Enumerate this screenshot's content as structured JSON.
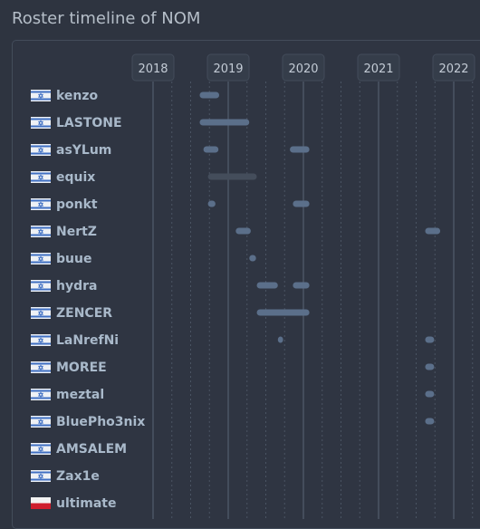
{
  "header": {
    "title": "Roster timeline of NOM"
  },
  "years": [
    "2018",
    "2019",
    "2020",
    "2021",
    "2022"
  ],
  "colors": {
    "background": "#2e3440",
    "panel_border": "#434c5a",
    "year_line": "#5a6575",
    "dotted_line": "#4a5463",
    "bar_active": "#5b6f8a",
    "bar_inactive": "#444d5b",
    "name": "#a9b9ca"
  },
  "players": [
    {
      "name": "kenzo",
      "flag": "israel-flag-icon",
      "stints": [
        {
          "start": 2018.62,
          "end": 2018.88,
          "status": "active"
        }
      ]
    },
    {
      "name": "LASTONE",
      "flag": "israel-flag-icon",
      "stints": [
        {
          "start": 2018.62,
          "end": 2019.28,
          "status": "active"
        }
      ]
    },
    {
      "name": "asYLum",
      "flag": "israel-flag-icon",
      "stints": [
        {
          "start": 2018.67,
          "end": 2018.87,
          "status": "active"
        },
        {
          "start": 2019.82,
          "end": 2020.08,
          "status": "active"
        }
      ]
    },
    {
      "name": "equix",
      "flag": "israel-flag-icon",
      "stints": [
        {
          "start": 2018.73,
          "end": 2019.38,
          "status": "inactive"
        }
      ]
    },
    {
      "name": "ponkt",
      "flag": "israel-flag-icon",
      "stints": [
        {
          "start": 2018.73,
          "end": 2018.83,
          "status": "active"
        },
        {
          "start": 2019.86,
          "end": 2020.08,
          "status": "active"
        }
      ]
    },
    {
      "name": "NertZ",
      "flag": "israel-flag-icon",
      "stints": [
        {
          "start": 2019.1,
          "end": 2019.3,
          "status": "active"
        },
        {
          "start": 2021.62,
          "end": 2021.82,
          "status": "active"
        }
      ]
    },
    {
      "name": "buue",
      "flag": "israel-flag-icon",
      "stints": [
        {
          "start": 2019.28,
          "end": 2019.37,
          "status": "active"
        }
      ]
    },
    {
      "name": "hydra",
      "flag": "israel-flag-icon",
      "stints": [
        {
          "start": 2019.38,
          "end": 2019.66,
          "status": "active"
        },
        {
          "start": 2019.86,
          "end": 2020.08,
          "status": "active"
        }
      ]
    },
    {
      "name": "ZENCER",
      "flag": "israel-flag-icon",
      "stints": [
        {
          "start": 2019.38,
          "end": 2020.08,
          "status": "active"
        }
      ]
    },
    {
      "name": "LaNrefNi",
      "flag": "israel-flag-icon",
      "stints": [
        {
          "start": 2019.66,
          "end": 2019.73,
          "status": "active"
        },
        {
          "start": 2021.62,
          "end": 2021.74,
          "status": "active"
        }
      ]
    },
    {
      "name": "MOREE",
      "flag": "israel-flag-icon",
      "stints": [
        {
          "start": 2021.62,
          "end": 2021.74,
          "status": "active"
        }
      ]
    },
    {
      "name": "meztal",
      "flag": "israel-flag-icon",
      "stints": [
        {
          "start": 2021.62,
          "end": 2021.74,
          "status": "active"
        }
      ]
    },
    {
      "name": "BluePho3nix",
      "flag": "israel-flag-icon",
      "stints": [
        {
          "start": 2021.62,
          "end": 2021.74,
          "status": "active"
        }
      ]
    },
    {
      "name": "AMSALEM",
      "flag": "israel-flag-icon",
      "stints": []
    },
    {
      "name": "Zax1e",
      "flag": "israel-flag-icon",
      "stints": []
    },
    {
      "name": "ultimate",
      "flag": "poland-flag-icon",
      "stints": []
    }
  ]
}
